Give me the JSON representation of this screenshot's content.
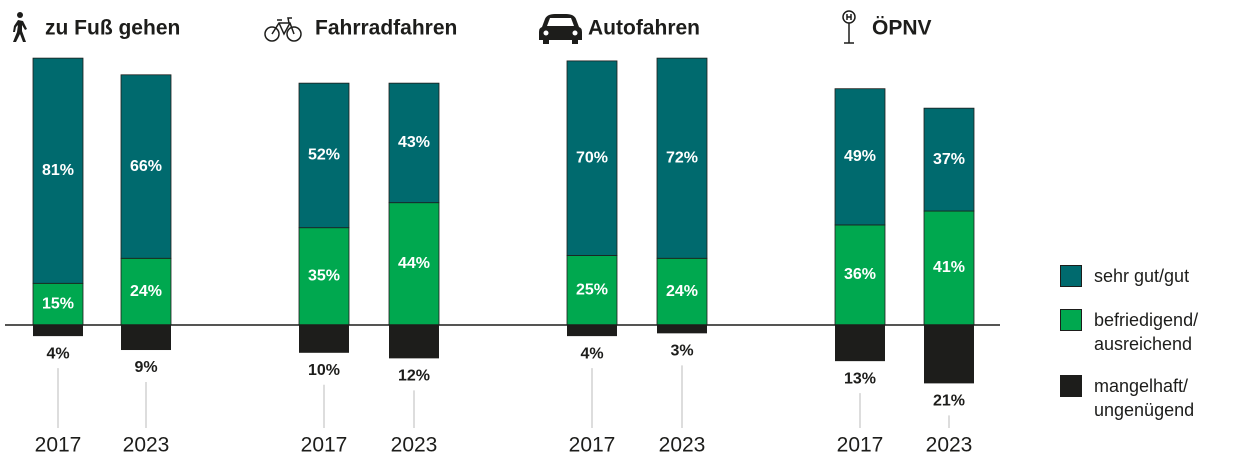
{
  "chart_data": {
    "type": "bar",
    "groups": [
      "zu Fuß gehen",
      "Fahrradfahren",
      "Autofahren",
      "ÖPNV"
    ],
    "categories": [
      "2017",
      "2023",
      "2017",
      "2023",
      "2017",
      "2023",
      "2017",
      "2023"
    ],
    "series": [
      {
        "name": "sehr gut/gut",
        "color": "#006a6e",
        "values": [
          81,
          66,
          52,
          43,
          70,
          72,
          49,
          37
        ],
        "value_labels": [
          "81%",
          "66%",
          "52%",
          "43%",
          "70%",
          "72%",
          "49%",
          "37%"
        ]
      },
      {
        "name": "befriedigend/ausreichend",
        "color": "#00a84f",
        "values": [
          15,
          24,
          35,
          44,
          25,
          24,
          36,
          41
        ],
        "value_labels": [
          "15%",
          "24%",
          "35%",
          "44%",
          "25%",
          "24%",
          "36%",
          "41%"
        ]
      },
      {
        "name": "mangelhaft/ungenügend",
        "color": "#1d1d1b",
        "values": [
          4,
          9,
          10,
          12,
          4,
          3,
          13,
          21
        ],
        "value_labels": [
          "4%",
          "9%",
          "10%",
          "12%",
          "4%",
          "3%",
          "13%",
          "21%"
        ]
      }
    ]
  }
}
